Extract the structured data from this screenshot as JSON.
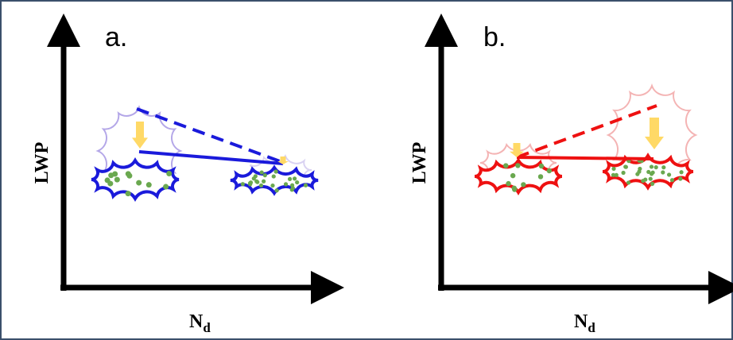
{
  "panels": [
    {
      "label": "a.",
      "y_axis_label": "LWP",
      "x_axis_label": {
        "main": "N",
        "subscript": "d"
      }
    },
    {
      "label": "b.",
      "y_axis_label": "LWP",
      "x_axis_label": {
        "main": "N",
        "subscript": "d"
      }
    }
  ]
}
